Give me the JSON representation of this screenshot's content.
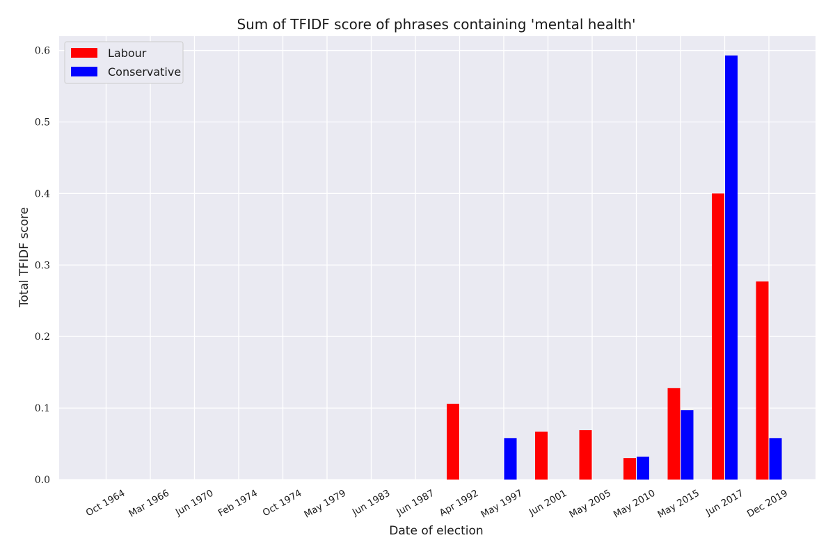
{
  "chart_data": {
    "type": "bar",
    "title": "Sum of TFIDF score of phrases containing 'mental health'",
    "xlabel": "Date of election",
    "ylabel": "Total TFIDF score",
    "ylim": [
      0,
      0.62
    ],
    "yticks": [
      "0.0",
      "0.1",
      "0.2",
      "0.3",
      "0.4",
      "0.5",
      "0.6"
    ],
    "grid": true,
    "legend_position": "top-left",
    "categories": [
      "Oct 1964",
      "Mar 1966",
      "Jun 1970",
      "Feb 1974",
      "Oct 1974",
      "May 1979",
      "Jun 1983",
      "Jun 1987",
      "Apr 1992",
      "May 1997",
      "Jun 2001",
      "May 2005",
      "May 2010",
      "May 2015",
      "Jun 2017",
      "Dec 2019"
    ],
    "series": [
      {
        "name": "Labour",
        "color": "#ff0000",
        "values": [
          0,
          0,
          0,
          0,
          0,
          0,
          0,
          0,
          0.106,
          0,
          0.067,
          0.069,
          0.03,
          0.128,
          0.4,
          0.277
        ]
      },
      {
        "name": "Conservative",
        "color": "#0000ff",
        "values": [
          0,
          0,
          0,
          0,
          0,
          0,
          0,
          0,
          0,
          0.058,
          0,
          0,
          0.032,
          0.097,
          0.593,
          0.058
        ]
      }
    ],
    "colors": {
      "plot_background": "#eaeaf2",
      "grid": "#ffffff"
    }
  }
}
